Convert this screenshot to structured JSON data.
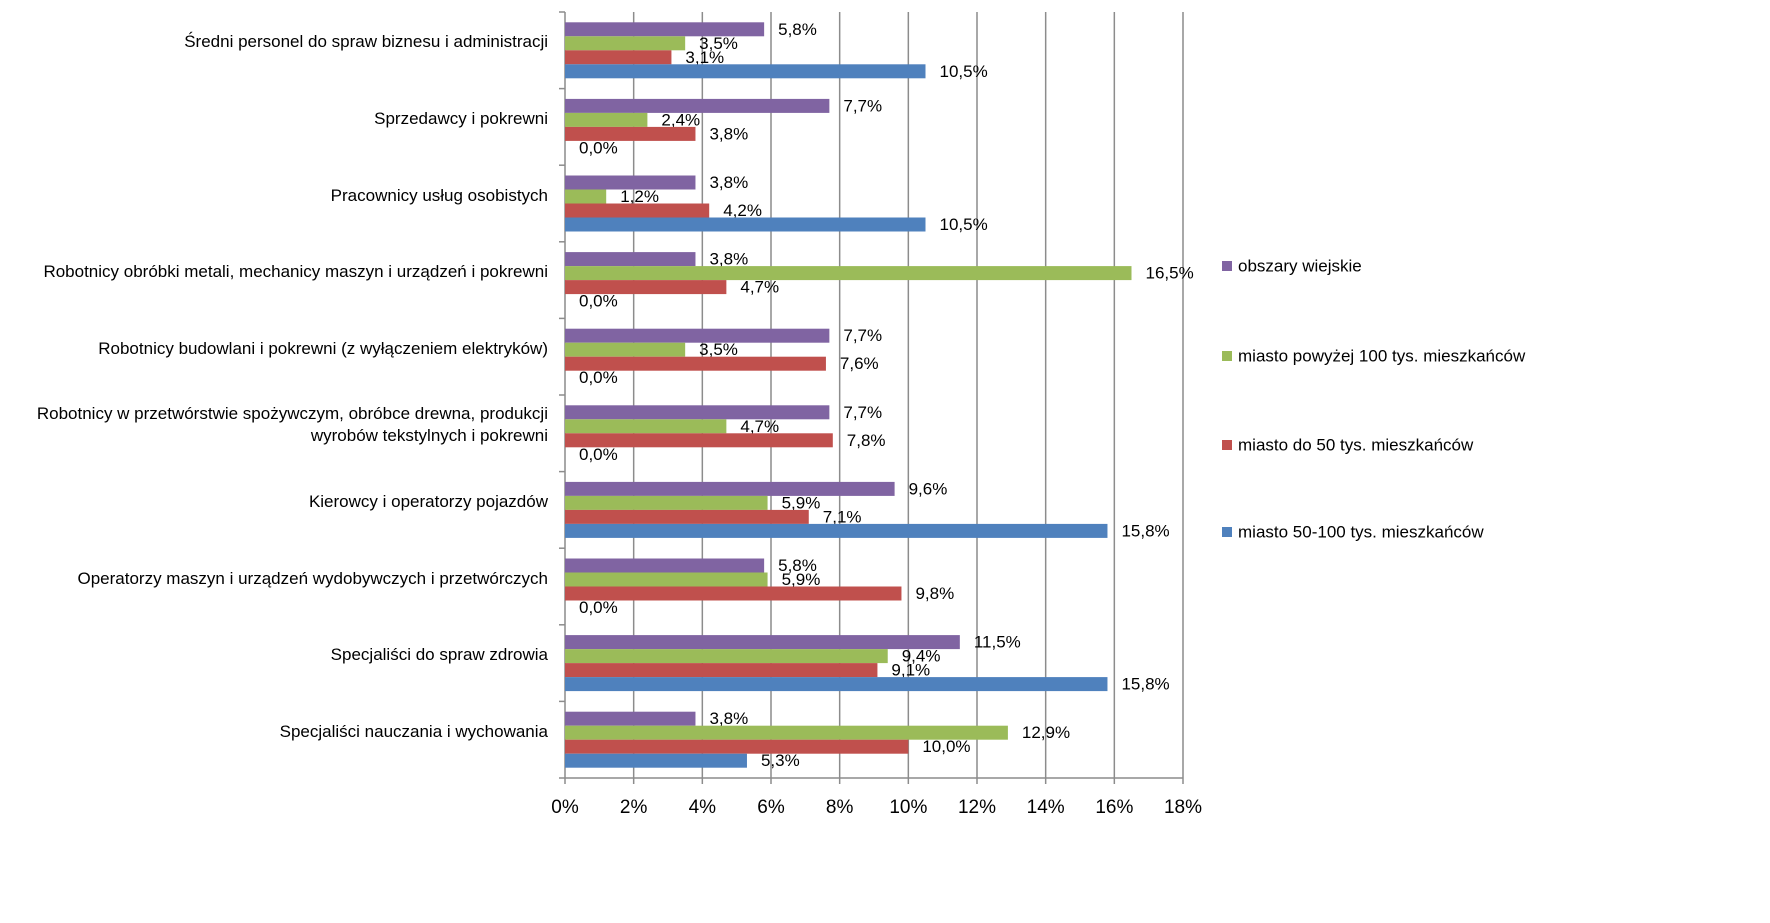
{
  "chart_data": {
    "type": "hbar",
    "categories": [
      "Średni personel do spraw biznesu i administracji",
      "Sprzedawcy i pokrewni",
      "Pracownicy usług osobistych",
      "Robotnicy obróbki metali, mechanicy maszyn i urządzeń i pokrewni",
      "Robotnicy budowlani i pokrewni (z wyłączeniem elektryków)",
      "Robotnicy w przetwórstwie spożywczym, obróbce drewna, produkcji wyrobów tekstylnych i pokrewni",
      "Kierowcy i operatorzy pojazdów",
      "Operatorzy maszyn i urządzeń wydobywczych i przetwórczych",
      "Specjaliści do spraw zdrowia",
      "Specjaliści nauczania i wychowania"
    ],
    "series": [
      {
        "name": "obszary wiejskie",
        "color": "#8064a2",
        "values": [
          5.8,
          7.7,
          3.8,
          3.8,
          7.7,
          7.7,
          9.6,
          5.8,
          11.5,
          3.8
        ],
        "value_labels": [
          "5,8%",
          "7,7%",
          "3,8%",
          "3,8%",
          "7,7%",
          "7,7%",
          "9,6%",
          "5,8%",
          "11,5%",
          "3,8%"
        ]
      },
      {
        "name": "miasto powyżej 100 tys. mieszkańców",
        "color": "#9bbb59",
        "values": [
          3.5,
          2.4,
          1.2,
          16.5,
          3.5,
          4.7,
          5.9,
          5.9,
          9.4,
          12.9
        ],
        "value_labels": [
          "3,5%",
          "2,4%",
          "1,2%",
          "16,5%",
          "3,5%",
          "4,7%",
          "5,9%",
          "5,9%",
          "9,4%",
          "12,9%"
        ]
      },
      {
        "name": "miasto do 50 tys. mieszkańców",
        "color": "#c0504d",
        "values": [
          3.1,
          3.8,
          4.2,
          4.7,
          7.6,
          7.8,
          7.1,
          9.8,
          9.1,
          10.0
        ],
        "value_labels": [
          "3,1%",
          "3,8%",
          "4,2%",
          "4,7%",
          "7,6%",
          "7,8%",
          "7,1%",
          "9,8%",
          "9,1%",
          "10,0%"
        ]
      },
      {
        "name": "miasto 50-100 tys. mieszkańców",
        "color": "#4f81bd",
        "values": [
          10.5,
          0.0,
          10.5,
          0.0,
          0.0,
          0.0,
          15.8,
          0.0,
          15.8,
          5.3
        ],
        "value_labels": [
          "10,5%",
          "0,0%",
          "10,5%",
          "0,0%",
          "0,0%",
          "0,0%",
          "15,8%",
          "0,0%",
          "15,8%",
          "5,3%"
        ]
      }
    ],
    "xlim": [
      0,
      18
    ],
    "xticks": [
      {
        "value": 0,
        "label": "0%"
      },
      {
        "value": 2,
        "label": "2%"
      },
      {
        "value": 4,
        "label": "4%"
      },
      {
        "value": 6,
        "label": "6%"
      },
      {
        "value": 8,
        "label": "8%"
      },
      {
        "value": 10,
        "label": "10%"
      },
      {
        "value": 12,
        "label": "12%"
      },
      {
        "value": 14,
        "label": "14%"
      },
      {
        "value": 16,
        "label": "16%"
      },
      {
        "value": 18,
        "label": "18%"
      }
    ],
    "grid": true,
    "legend": "right"
  }
}
